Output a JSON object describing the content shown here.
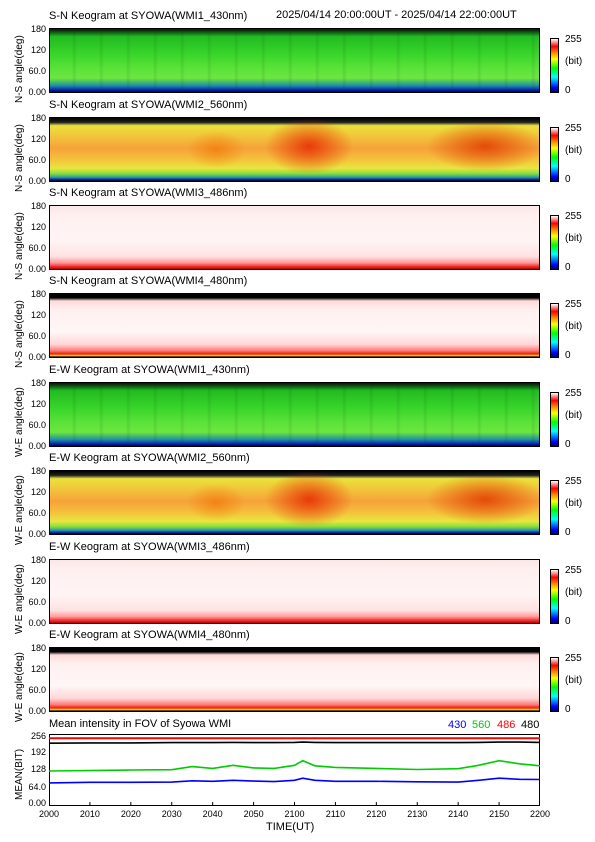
{
  "header": {
    "time_range": "2025/04/14 20:00:00UT - 2025/04/14 22:00:00UT"
  },
  "keograms": [
    {
      "title": "S-N Keogram at SYOWA(WMI1_430nm)",
      "ylabel": "N-S angle(deg)",
      "yticks": [
        "180",
        "120",
        "60.0",
        "0.00"
      ],
      "cbar_max": "255",
      "cbar_unit": "(bit)",
      "cbar_min": "0",
      "palette": "green"
    },
    {
      "title": "S-N Keogram at SYOWA(WMI2_560nm)",
      "ylabel": "N-S angle(deg)",
      "yticks": [
        "180",
        "120",
        "60.0",
        "0.00"
      ],
      "cbar_max": "255",
      "cbar_unit": "(bit)",
      "cbar_min": "0",
      "palette": "hot"
    },
    {
      "title": "S-N Keogram at SYOWA(WMI3_486nm)",
      "ylabel": "N-S angle(deg)",
      "yticks": [
        "180",
        "120",
        "60.0",
        "0.00"
      ],
      "cbar_max": "255",
      "cbar_unit": "(bit)",
      "cbar_min": "0",
      "palette": "pale"
    },
    {
      "title": "S-N Keogram at SYOWA(WMI4_480nm)",
      "ylabel": "N-S angle(deg)",
      "yticks": [
        "180",
        "120",
        "60.0",
        "0.00"
      ],
      "cbar_max": "255",
      "cbar_unit": "(bit)",
      "cbar_min": "0",
      "palette": "pale4"
    },
    {
      "title": "E-W Keogram at SYOWA(WMI1_430nm)",
      "ylabel": "W-E angle(deg)",
      "yticks": [
        "180",
        "120",
        "60.0",
        "0.00"
      ],
      "cbar_max": "255",
      "cbar_unit": "(bit)",
      "cbar_min": "0",
      "palette": "green"
    },
    {
      "title": "E-W Keogram at SYOWA(WMI2_560nm)",
      "ylabel": "W-E angle(deg)",
      "yticks": [
        "180",
        "120",
        "60.0",
        "0.00"
      ],
      "cbar_max": "255",
      "cbar_unit": "(bit)",
      "cbar_min": "0",
      "palette": "hot"
    },
    {
      "title": "E-W Keogram at SYOWA(WMI3_486nm)",
      "ylabel": "W-E angle(deg)",
      "yticks": [
        "180",
        "120",
        "60.0",
        "0.00"
      ],
      "cbar_max": "255",
      "cbar_unit": "(bit)",
      "cbar_min": "0",
      "palette": "pale"
    },
    {
      "title": "E-W Keogram at SYOWA(WMI4_480nm)",
      "ylabel": "W-E angle(deg)",
      "yticks": [
        "180",
        "120",
        "60.0",
        "0.00"
      ],
      "cbar_max": "255",
      "cbar_unit": "(bit)",
      "cbar_min": "0",
      "palette": "pale4"
    }
  ],
  "chart_data": {
    "type": "line",
    "title": "Mean intensity in FOV of Syowa WMI",
    "xlabel": "TIME(UT)",
    "ylabel": "MEAN(BIT)",
    "xticks": [
      "2000",
      "2010",
      "2020",
      "2030",
      "2040",
      "2050",
      "2100",
      "2110",
      "2120",
      "2130",
      "2140",
      "2150",
      "2200"
    ],
    "yticks": [
      "256",
      "192",
      "128",
      "64.0",
      "0.00"
    ],
    "ylim": [
      0,
      256
    ],
    "x": [
      0,
      10,
      20,
      30,
      35,
      40,
      45,
      50,
      55,
      60,
      62,
      65,
      70,
      80,
      90,
      100,
      105,
      110,
      115,
      120
    ],
    "series": [
      {
        "name": "430",
        "color": "#0000ff",
        "values": [
          82,
          84,
          84,
          85,
          90,
          88,
          92,
          89,
          87,
          92,
          100,
          92,
          88,
          88,
          86,
          85,
          92,
          100,
          96,
          95
        ]
      },
      {
        "name": "560",
        "color": "#00cc00",
        "values": [
          128,
          130,
          132,
          133,
          145,
          138,
          150,
          140,
          138,
          150,
          168,
          148,
          142,
          138,
          134,
          137,
          150,
          168,
          156,
          148
        ]
      },
      {
        "name": "486",
        "color": "#ff0000",
        "values": [
          255,
          255,
          255,
          255,
          255,
          255,
          255,
          255,
          255,
          255,
          255,
          255,
          255,
          255,
          255,
          255,
          255,
          255,
          255,
          255
        ]
      },
      {
        "name": "480",
        "color": "#000000",
        "values": [
          236,
          237,
          237,
          238,
          238,
          238,
          239,
          238,
          238,
          239,
          240,
          239,
          238,
          238,
          238,
          238,
          239,
          240,
          240,
          239
        ]
      }
    ]
  }
}
